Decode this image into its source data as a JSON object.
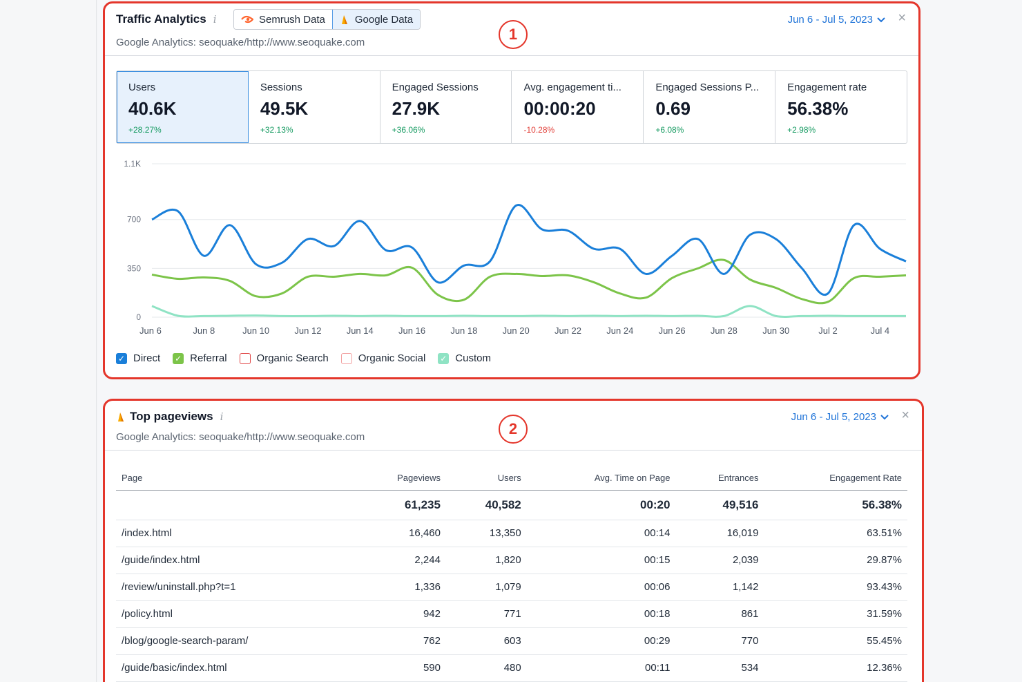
{
  "traffic": {
    "title": "Traffic Analytics",
    "info_icon": "i",
    "toggle": [
      {
        "label": "Semrush Data",
        "icon": "semrush-icon",
        "active": false
      },
      {
        "label": "Google Data",
        "icon": "google-analytics-icon",
        "active": true
      }
    ],
    "subtitle": "Google Analytics: seoquake/http://www.seoquake.com",
    "date_range": "Jun 6 - Jul 5, 2023",
    "close": "×",
    "badge": "1",
    "metrics": [
      {
        "label": "Users",
        "value": "40.6K",
        "delta": "+28.27%",
        "trend": "pos",
        "active": true
      },
      {
        "label": "Sessions",
        "value": "49.5K",
        "delta": "+32.13%",
        "trend": "pos",
        "active": false
      },
      {
        "label": "Engaged Sessions",
        "value": "27.9K",
        "delta": "+36.06%",
        "trend": "pos",
        "active": false
      },
      {
        "label": "Avg. engagement ti...",
        "value": "00:00:20",
        "delta": "-10.28%",
        "trend": "neg",
        "active": false
      },
      {
        "label": "Engaged Sessions P...",
        "value": "0.69",
        "delta": "+6.08%",
        "trend": "pos",
        "active": false
      },
      {
        "label": "Engagement rate",
        "value": "56.38%",
        "delta": "+2.98%",
        "trend": "pos",
        "active": false
      }
    ],
    "legend": [
      {
        "label": "Direct",
        "checked": true,
        "color": "#1a7fd9"
      },
      {
        "label": "Referral",
        "checked": true,
        "color": "#7cc449"
      },
      {
        "label": "Organic Search",
        "checked": false,
        "color": "#e04545"
      },
      {
        "label": "Organic Social",
        "checked": false,
        "color": "#f2a0a0"
      },
      {
        "label": "Custom",
        "checked": true,
        "color": "#8fe3c4"
      }
    ]
  },
  "chart_data": {
    "type": "line",
    "ylim": [
      0,
      1100
    ],
    "y_ticks": [
      0,
      350,
      700,
      1100
    ],
    "y_tick_labels": [
      "0",
      "350",
      "700",
      "1.1K"
    ],
    "x_tick_labels": [
      "Jun 6",
      "Jun 8",
      "Jun 10",
      "Jun 12",
      "Jun 14",
      "Jun 16",
      "Jun 18",
      "Jun 20",
      "Jun 22",
      "Jun 24",
      "Jun 26",
      "Jun 28",
      "Jun 30",
      "Jul 2",
      "Jul 4"
    ],
    "x": [
      "Jun 6",
      "Jun 7",
      "Jun 8",
      "Jun 9",
      "Jun 10",
      "Jun 11",
      "Jun 12",
      "Jun 13",
      "Jun 14",
      "Jun 15",
      "Jun 16",
      "Jun 17",
      "Jun 18",
      "Jun 19",
      "Jun 20",
      "Jun 21",
      "Jun 22",
      "Jun 23",
      "Jun 24",
      "Jun 25",
      "Jun 26",
      "Jun 27",
      "Jun 28",
      "Jun 29",
      "Jun 30",
      "Jul 1",
      "Jul 2",
      "Jul 3",
      "Jul 4",
      "Jul 5"
    ],
    "grid": true,
    "series": [
      {
        "name": "Direct",
        "color": "#1a7fd9",
        "values": [
          700,
          760,
          440,
          660,
          380,
          390,
          560,
          510,
          690,
          480,
          500,
          250,
          370,
          400,
          800,
          630,
          620,
          490,
          490,
          310,
          440,
          560,
          310,
          590,
          560,
          350,
          170,
          660,
          490,
          400
        ]
      },
      {
        "name": "Referral",
        "color": "#7cc449",
        "values": [
          305,
          275,
          285,
          260,
          150,
          170,
          290,
          290,
          310,
          300,
          355,
          160,
          125,
          290,
          310,
          295,
          300,
          250,
          170,
          140,
          280,
          350,
          410,
          270,
          210,
          130,
          110,
          280,
          290,
          300
        ]
      },
      {
        "name": "Custom",
        "color": "#8fe3c4",
        "values": [
          80,
          10,
          8,
          10,
          12,
          8,
          8,
          10,
          8,
          10,
          8,
          8,
          10,
          8,
          8,
          10,
          8,
          10,
          8,
          10,
          8,
          10,
          8,
          80,
          8,
          8,
          10,
          8,
          8,
          8
        ]
      }
    ]
  },
  "pageviews": {
    "title": "Top pageviews",
    "info_icon": "i",
    "subtitle": "Google Analytics: seoquake/http://www.seoquake.com",
    "date_range": "Jun 6 - Jul 5, 2023",
    "close": "×",
    "badge": "2",
    "columns": [
      "Page",
      "Pageviews",
      "Users",
      "Avg. Time on Page",
      "Entrances",
      "Engagement Rate"
    ],
    "total": [
      "",
      "61,235",
      "40,582",
      "00:20",
      "49,516",
      "56.38%"
    ],
    "rows": [
      [
        "/index.html",
        "16,460",
        "13,350",
        "00:14",
        "16,019",
        "63.51%"
      ],
      [
        "/guide/index.html",
        "2,244",
        "1,820",
        "00:15",
        "2,039",
        "29.87%"
      ],
      [
        "/review/uninstall.php?t=1",
        "1,336",
        "1,079",
        "00:06",
        "1,142",
        "93.43%"
      ],
      [
        "/policy.html",
        "942",
        "771",
        "00:18",
        "861",
        "31.59%"
      ],
      [
        "/blog/google-search-param/",
        "762",
        "603",
        "00:29",
        "770",
        "55.45%"
      ],
      [
        "/guide/basic/index.html",
        "590",
        "480",
        "00:11",
        "534",
        "12.36%"
      ]
    ]
  }
}
